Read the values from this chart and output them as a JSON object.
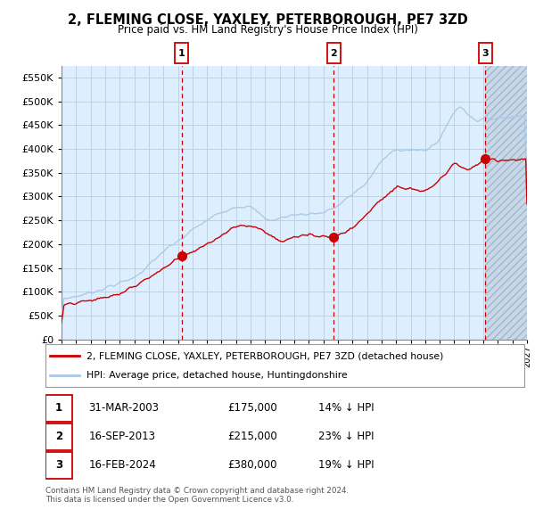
{
  "title": "2, FLEMING CLOSE, YAXLEY, PETERBOROUGH, PE7 3ZD",
  "subtitle": "Price paid vs. HM Land Registry's House Price Index (HPI)",
  "legend_line1": "2, FLEMING CLOSE, YAXLEY, PETERBOROUGH, PE7 3ZD (detached house)",
  "legend_line2": "HPI: Average price, detached house, Huntingdonshire",
  "sale1_date": "31-MAR-2003",
  "sale1_price": 175000,
  "sale1_pct": "14% ↓ HPI",
  "sale2_date": "16-SEP-2013",
  "sale2_price": 215000,
  "sale2_pct": "23% ↓ HPI",
  "sale3_date": "16-FEB-2024",
  "sale3_price": 380000,
  "sale3_pct": "19% ↓ HPI",
  "footer": "Contains HM Land Registry data © Crown copyright and database right 2024.\nThis data is licensed under the Open Government Licence v3.0.",
  "hpi_color": "#a8c8e8",
  "price_color": "#cc0000",
  "shade_color": "#ddeeff",
  "hatch_color": "#c0d0e0",
  "background_color": "#ffffff",
  "grid_color": "#cccccc",
  "ylim_max": 575000,
  "sale1_year": 2003.25,
  "sale2_year": 2013.72,
  "sale3_year": 2024.12,
  "xmin": 1995,
  "xmax": 2027
}
